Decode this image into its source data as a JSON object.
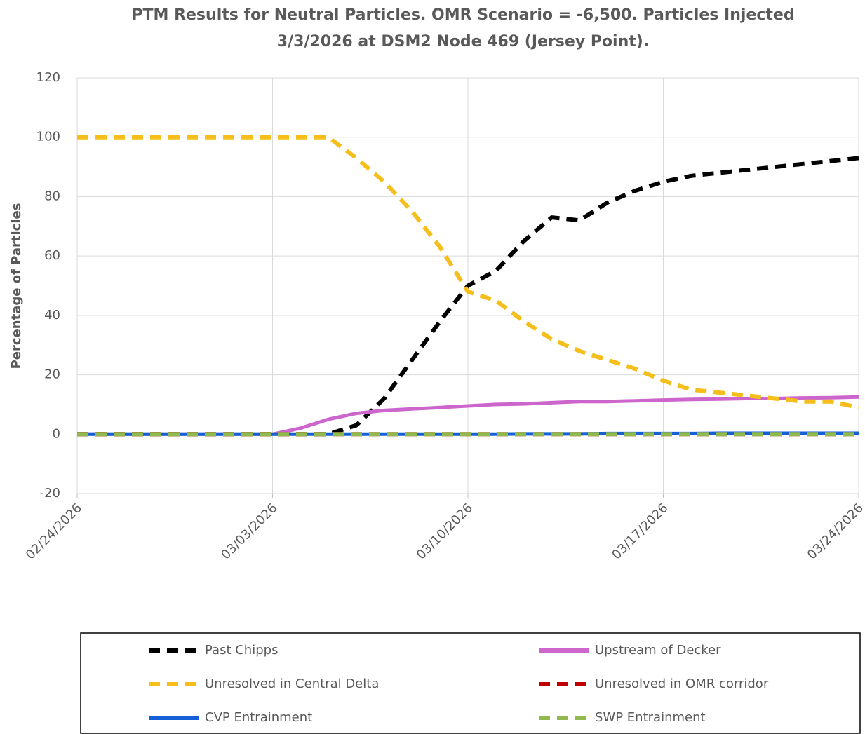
{
  "chart_data": {
    "type": "line",
    "title": [
      "PTM Results for Neutral Particles. OMR Scenario = -6,500. Particles Injected",
      "3/3/2026 at DSM2 Node 469 (Jersey Point)."
    ],
    "y_label": "Percentage of Particles",
    "x": [
      "2026-02-24",
      "2026-02-25",
      "2026-02-26",
      "2026-02-27",
      "2026-02-28",
      "2026-03-01",
      "2026-03-02",
      "2026-03-03",
      "2026-03-04",
      "2026-03-05",
      "2026-03-06",
      "2026-03-07",
      "2026-03-08",
      "2026-03-09",
      "2026-03-10",
      "2026-03-11",
      "2026-03-12",
      "2026-03-13",
      "2026-03-14",
      "2026-03-15",
      "2026-03-16",
      "2026-03-17",
      "2026-03-18",
      "2026-03-19",
      "2026-03-20",
      "2026-03-21",
      "2026-03-22",
      "2026-03-23",
      "2026-03-24"
    ],
    "series": [
      {
        "name": "Past Chipps",
        "color": "#000000",
        "dash": true,
        "values": [
          0,
          0,
          0,
          0,
          0,
          0,
          0,
          0,
          0,
          0,
          3,
          12,
          25,
          38,
          50,
          55,
          65,
          73,
          72,
          78,
          82,
          85,
          87,
          88,
          89,
          90,
          91,
          92,
          93
        ]
      },
      {
        "name": "Upstream of Decker",
        "color": "#cc66cc",
        "dash": false,
        "values": [
          0,
          0,
          0,
          0,
          0,
          0,
          0,
          0,
          2,
          5,
          7,
          8,
          8.5,
          9,
          9.5,
          10,
          10.2,
          10.6,
          11,
          11,
          11.2,
          11.5,
          11.7,
          11.8,
          12,
          12,
          12.2,
          12.3,
          12.5
        ]
      },
      {
        "name": "Unresolved in Central Delta",
        "color": "#f5be1a",
        "dash": true,
        "values": [
          100,
          100,
          100,
          100,
          100,
          100,
          100,
          100,
          100,
          100,
          93,
          85,
          75,
          63,
          48,
          45,
          38,
          32,
          28,
          25,
          22,
          18,
          15,
          14,
          13,
          12,
          11,
          11,
          9
        ]
      },
      {
        "name": "Unresolved in OMR corridor",
        "color": "#c00000",
        "dash": true,
        "values": [
          0,
          0,
          0,
          0,
          0,
          0,
          0,
          0,
          0,
          0,
          0,
          0,
          0,
          0,
          0,
          0,
          0,
          0,
          0,
          0,
          0,
          0,
          0,
          0,
          0,
          0,
          0,
          0,
          0
        ]
      },
      {
        "name": "CVP Entrainment",
        "color": "#1560d6",
        "dash": false,
        "values": [
          0,
          0,
          0,
          0,
          0,
          0,
          0,
          0,
          0,
          0,
          0,
          0,
          0,
          0,
          0,
          0,
          0.1,
          0.1,
          0.1,
          0.2,
          0.2,
          0.2,
          0.2,
          0.3,
          0.3,
          0.3,
          0.3,
          0.3,
          0.3
        ]
      },
      {
        "name": "SWP Entrainment",
        "color": "#92b94e",
        "dash": true,
        "values": [
          0,
          0,
          0,
          0,
          0,
          0,
          0,
          0,
          0,
          0,
          0,
          0,
          0,
          0,
          0,
          0,
          0,
          0,
          0,
          0,
          0,
          0,
          0,
          0,
          0,
          0,
          0,
          0,
          0
        ]
      }
    ],
    "ylim": [
      -20,
      120
    ],
    "yticks": [
      -20,
      0,
      20,
      40,
      60,
      80,
      100,
      120
    ],
    "xlim": [
      "2026-02-24",
      "2026-03-24"
    ],
    "xticks": [
      {
        "value": "2026-02-24",
        "label": "02/24/2026"
      },
      {
        "value": "2026-03-03",
        "label": "03/03/2026"
      },
      {
        "value": "2026-03-10",
        "label": "03/10/2026"
      },
      {
        "value": "2026-03-17",
        "label": "03/17/2026"
      },
      {
        "value": "2026-03-24",
        "label": "03/24/2026"
      }
    ],
    "grid": true,
    "legend": "bottom"
  }
}
